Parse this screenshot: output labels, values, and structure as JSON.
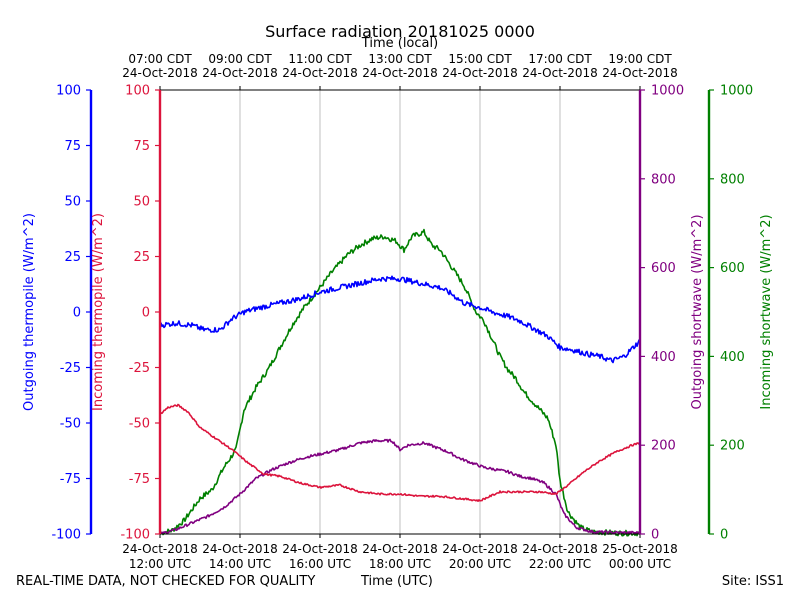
{
  "chart_data": {
    "type": "line",
    "title": "Surface radiation 20181025 0000",
    "top_axis_label": "Time (local)",
    "bottom_axis_label": "Time (UTC)",
    "x_range": [
      "2018-10-24 12:00 UTC",
      "2018-10-25 00:00 UTC"
    ],
    "x_ticks_utc": [
      {
        "hour": 12,
        "line1": "24-Oct-2018",
        "line2": "12:00 UTC"
      },
      {
        "hour": 14,
        "line1": "24-Oct-2018",
        "line2": "14:00 UTC"
      },
      {
        "hour": 16,
        "line1": "24-Oct-2018",
        "line2": "16:00 UTC"
      },
      {
        "hour": 18,
        "line1": "24-Oct-2018",
        "line2": "18:00 UTC"
      },
      {
        "hour": 20,
        "line1": "24-Oct-2018",
        "line2": "20:00 UTC"
      },
      {
        "hour": 22,
        "line1": "24-Oct-2018",
        "line2": "22:00 UTC"
      },
      {
        "hour": 24,
        "line1": "25-Oct-2018",
        "line2": "00:00 UTC"
      }
    ],
    "x_ticks_local": [
      {
        "hour": 12,
        "line1": "07:00 CDT",
        "line2": "24-Oct-2018"
      },
      {
        "hour": 14,
        "line1": "09:00 CDT",
        "line2": "24-Oct-2018"
      },
      {
        "hour": 16,
        "line1": "11:00 CDT",
        "line2": "24-Oct-2018"
      },
      {
        "hour": 18,
        "line1": "13:00 CDT",
        "line2": "24-Oct-2018"
      },
      {
        "hour": 20,
        "line1": "15:00 CDT",
        "line2": "24-Oct-2018"
      },
      {
        "hour": 22,
        "line1": "17:00 CDT",
        "line2": "24-Oct-2018"
      },
      {
        "hour": 24,
        "line1": "19:00 CDT",
        "line2": "24-Oct-2018"
      }
    ],
    "axes": [
      {
        "id": "outgoing_thermopile",
        "label": "Outgoing thermopile (W/m^2)",
        "color": "#0000ff",
        "ylim": [
          -100,
          100
        ],
        "ticks": [
          -100,
          -75,
          -50,
          -25,
          0,
          25,
          50,
          75,
          100
        ]
      },
      {
        "id": "incoming_thermopile",
        "label": "Incoming thermopile (W/m^2)",
        "color": "#dc143c",
        "ylim": [
          -100,
          100
        ],
        "ticks": [
          -100,
          -75,
          -50,
          -25,
          0,
          25,
          50,
          75,
          100
        ]
      },
      {
        "id": "outgoing_shortwave",
        "label": "Outgoing shortwave (W/m^2)",
        "color": "#800080",
        "ylim": [
          0,
          1000
        ],
        "ticks": [
          0,
          200,
          400,
          600,
          800,
          1000
        ]
      },
      {
        "id": "incoming_shortwave",
        "label": "Incoming shortwave (W/m^2)",
        "color": "#008000",
        "ylim": [
          0,
          1000
        ],
        "ticks": [
          0,
          200,
          400,
          600,
          800,
          1000
        ]
      }
    ],
    "grid": "vertical",
    "series": [
      {
        "axis": "incoming_shortwave",
        "color": "#008000",
        "noise": 6,
        "points": [
          [
            12.0,
            2
          ],
          [
            12.3,
            8
          ],
          [
            12.6,
            30
          ],
          [
            13.0,
            80
          ],
          [
            13.3,
            100
          ],
          [
            13.6,
            150
          ],
          [
            13.9,
            190
          ],
          [
            14.1,
            280
          ],
          [
            14.4,
            330
          ],
          [
            14.7,
            370
          ],
          [
            15.0,
            420
          ],
          [
            15.3,
            470
          ],
          [
            15.6,
            510
          ],
          [
            16.0,
            555
          ],
          [
            16.3,
            590
          ],
          [
            16.7,
            630
          ],
          [
            17.0,
            650
          ],
          [
            17.3,
            665
          ],
          [
            17.6,
            670
          ],
          [
            17.9,
            660
          ],
          [
            18.1,
            640
          ],
          [
            18.3,
            670
          ],
          [
            18.6,
            680
          ],
          [
            18.8,
            650
          ],
          [
            19.0,
            640
          ],
          [
            19.3,
            600
          ],
          [
            19.6,
            560
          ],
          [
            19.9,
            500
          ],
          [
            20.1,
            480
          ],
          [
            20.3,
            440
          ],
          [
            20.5,
            400
          ],
          [
            20.7,
            370
          ],
          [
            20.9,
            350
          ],
          [
            21.1,
            320
          ],
          [
            21.3,
            300
          ],
          [
            21.5,
            280
          ],
          [
            21.7,
            260
          ],
          [
            21.9,
            200
          ],
          [
            22.0,
            120
          ],
          [
            22.2,
            50
          ],
          [
            22.5,
            15
          ],
          [
            22.8,
            5
          ],
          [
            23.5,
            2
          ],
          [
            24.0,
            2
          ]
        ]
      },
      {
        "axis": "outgoing_shortwave",
        "color": "#800080",
        "noise": 3,
        "points": [
          [
            12.0,
            0
          ],
          [
            12.4,
            10
          ],
          [
            12.8,
            25
          ],
          [
            13.2,
            40
          ],
          [
            13.6,
            60
          ],
          [
            14.0,
            90
          ],
          [
            14.4,
            125
          ],
          [
            14.8,
            145
          ],
          [
            15.2,
            160
          ],
          [
            15.6,
            172
          ],
          [
            16.0,
            180
          ],
          [
            16.5,
            190
          ],
          [
            17.0,
            205
          ],
          [
            17.4,
            210
          ],
          [
            17.8,
            210
          ],
          [
            18.0,
            190
          ],
          [
            18.2,
            200
          ],
          [
            18.6,
            205
          ],
          [
            18.9,
            195
          ],
          [
            19.2,
            185
          ],
          [
            19.5,
            170
          ],
          [
            19.8,
            160
          ],
          [
            20.1,
            150
          ],
          [
            20.4,
            145
          ],
          [
            20.7,
            140
          ],
          [
            21.0,
            130
          ],
          [
            21.3,
            125
          ],
          [
            21.6,
            115
          ],
          [
            21.9,
            90
          ],
          [
            22.1,
            45
          ],
          [
            22.4,
            15
          ],
          [
            22.8,
            5
          ],
          [
            23.5,
            3
          ],
          [
            24.0,
            3
          ]
        ]
      },
      {
        "axis": "outgoing_thermopile",
        "color": "#0000ff",
        "noise": 1.2,
        "points": [
          [
            12.0,
            -6
          ],
          [
            12.4,
            -5
          ],
          [
            12.8,
            -6
          ],
          [
            13.1,
            -8
          ],
          [
            13.5,
            -8
          ],
          [
            13.8,
            -3
          ],
          [
            14.1,
            0
          ],
          [
            14.5,
            2
          ],
          [
            15.0,
            4
          ],
          [
            15.5,
            6
          ],
          [
            16.0,
            9
          ],
          [
            16.5,
            11
          ],
          [
            17.0,
            13
          ],
          [
            17.5,
            15
          ],
          [
            18.0,
            15
          ],
          [
            18.5,
            13
          ],
          [
            19.0,
            11
          ],
          [
            19.3,
            8
          ],
          [
            19.6,
            4
          ],
          [
            20.0,
            2
          ],
          [
            20.3,
            0
          ],
          [
            20.7,
            -2
          ],
          [
            21.0,
            -4
          ],
          [
            21.3,
            -7
          ],
          [
            21.7,
            -11
          ],
          [
            22.0,
            -16
          ],
          [
            22.3,
            -17
          ],
          [
            22.7,
            -19
          ],
          [
            23.0,
            -20
          ],
          [
            23.3,
            -22
          ],
          [
            23.6,
            -20
          ],
          [
            24.0,
            -13
          ]
        ]
      },
      {
        "axis": "incoming_thermopile",
        "color": "#dc143c",
        "noise": 0.4,
        "points": [
          [
            12.0,
            -46
          ],
          [
            12.2,
            -43
          ],
          [
            12.45,
            -42
          ],
          [
            12.7,
            -45
          ],
          [
            13.0,
            -52
          ],
          [
            13.4,
            -57
          ],
          [
            13.8,
            -62
          ],
          [
            14.2,
            -68
          ],
          [
            14.6,
            -73
          ],
          [
            15.0,
            -74
          ],
          [
            15.5,
            -77
          ],
          [
            16.0,
            -79
          ],
          [
            16.5,
            -78
          ],
          [
            17.0,
            -81
          ],
          [
            17.5,
            -82
          ],
          [
            18.0,
            -82
          ],
          [
            18.5,
            -83
          ],
          [
            19.0,
            -83
          ],
          [
            19.5,
            -84
          ],
          [
            20.0,
            -85
          ],
          [
            20.5,
            -81
          ],
          [
            21.0,
            -81
          ],
          [
            21.5,
            -81
          ],
          [
            21.9,
            -82
          ],
          [
            22.2,
            -78
          ],
          [
            22.6,
            -72
          ],
          [
            23.0,
            -67
          ],
          [
            23.4,
            -63
          ],
          [
            23.8,
            -60
          ],
          [
            24.0,
            -59
          ]
        ]
      }
    ]
  },
  "footer": {
    "left": "REAL-TIME DATA, NOT CHECKED FOR QUALITY",
    "center": "Time (UTC)",
    "right": "Site: ISS1"
  }
}
